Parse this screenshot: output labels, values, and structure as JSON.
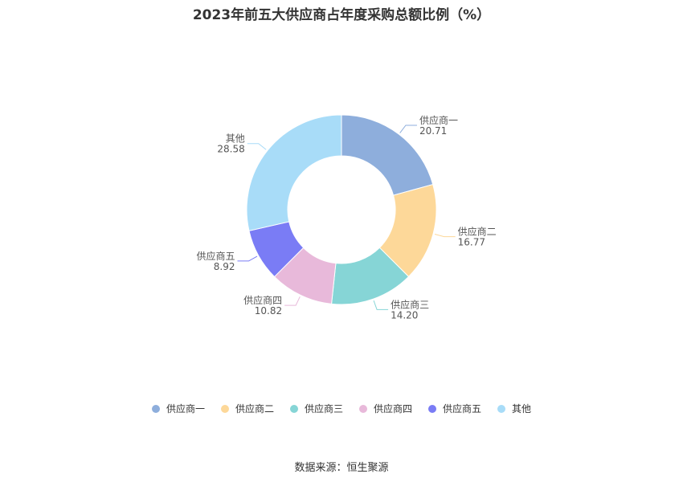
{
  "chart_data": {
    "type": "pie",
    "variant": "donut",
    "title": "2023年前五大供应商占年度采购总额比例（%）",
    "categories": [
      "供应商一",
      "供应商二",
      "供应商三",
      "供应商四",
      "供应商五",
      "其他"
    ],
    "values": [
      20.71,
      16.77,
      14.2,
      10.82,
      8.92,
      28.58
    ],
    "value_labels": [
      "20.71",
      "16.77",
      "14.20",
      "10.82",
      "8.92",
      "28.58"
    ],
    "colors": [
      "#8eaedc",
      "#fdd899",
      "#86d5d6",
      "#e8b9da",
      "#7a7cf5",
      "#a8dcf8"
    ],
    "legend_position": "bottom-center"
  },
  "source": "数据来源：恒生聚源"
}
